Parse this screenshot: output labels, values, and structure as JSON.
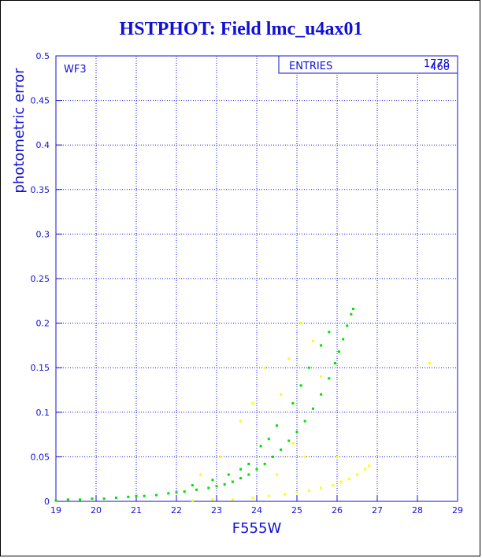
{
  "chart_data": {
    "type": "scatter",
    "title": "HSTPHOT: Field lmc_u4ax01",
    "xlabel": "F555W",
    "ylabel": "photometric error",
    "panel_label": "WF3",
    "stats_label": "ENTRIES",
    "stats_values": [
      "1778",
      "460"
    ],
    "xlim": [
      19,
      29
    ],
    "ylim": [
      0,
      0.5
    ],
    "xticks": [
      19,
      20,
      21,
      22,
      23,
      24,
      25,
      26,
      27,
      28,
      29
    ],
    "yticks": [
      0,
      0.05,
      0.1,
      0.15,
      0.2,
      0.25,
      0.3,
      0.35,
      0.4,
      0.45,
      0.5
    ],
    "ytick_labels": [
      "0",
      "0.05",
      "0.1",
      "0.15",
      "0.2",
      "0.25",
      "0.3",
      "0.35",
      "0.4",
      "0.45",
      "0.5"
    ],
    "grid": true,
    "series": [
      {
        "color": "#00e000",
        "points": [
          [
            19.0,
            0.001
          ],
          [
            19.3,
            0.002
          ],
          [
            19.6,
            0.002
          ],
          [
            19.9,
            0.003
          ],
          [
            20.2,
            0.003
          ],
          [
            20.5,
            0.004
          ],
          [
            20.8,
            0.005
          ],
          [
            21.0,
            0.006
          ],
          [
            21.2,
            0.006
          ],
          [
            21.5,
            0.007
          ],
          [
            21.8,
            0.009
          ],
          [
            22.0,
            0.01
          ],
          [
            22.2,
            0.011
          ],
          [
            22.5,
            0.013
          ],
          [
            22.8,
            0.015
          ],
          [
            23.0,
            0.017
          ],
          [
            23.2,
            0.019
          ],
          [
            23.4,
            0.022
          ],
          [
            23.6,
            0.026
          ],
          [
            23.8,
            0.03
          ],
          [
            24.0,
            0.036
          ],
          [
            24.2,
            0.042
          ],
          [
            24.4,
            0.05
          ],
          [
            24.6,
            0.058
          ],
          [
            24.8,
            0.068
          ],
          [
            25.0,
            0.078
          ],
          [
            25.2,
            0.09
          ],
          [
            25.4,
            0.104
          ],
          [
            25.6,
            0.12
          ],
          [
            25.8,
            0.138
          ],
          [
            25.95,
            0.155
          ],
          [
            26.05,
            0.168
          ],
          [
            26.15,
            0.182
          ],
          [
            26.25,
            0.197
          ],
          [
            26.35,
            0.21
          ],
          [
            26.4,
            0.216
          ],
          [
            22.4,
            0.018
          ],
          [
            23.3,
            0.03
          ],
          [
            23.8,
            0.042
          ],
          [
            24.1,
            0.062
          ],
          [
            24.5,
            0.085
          ],
          [
            24.9,
            0.11
          ],
          [
            25.1,
            0.13
          ],
          [
            25.3,
            0.15
          ],
          [
            25.6,
            0.175
          ],
          [
            25.8,
            0.19
          ],
          [
            22.9,
            0.024
          ],
          [
            23.6,
            0.036
          ],
          [
            24.3,
            0.07
          ]
        ]
      },
      {
        "color": "#ffff00",
        "points": [
          [
            22.4,
            0.001
          ],
          [
            22.9,
            0.002
          ],
          [
            23.4,
            0.002
          ],
          [
            23.9,
            0.004
          ],
          [
            24.3,
            0.006
          ],
          [
            24.7,
            0.008
          ],
          [
            25.0,
            0.01
          ],
          [
            25.3,
            0.012
          ],
          [
            25.6,
            0.015
          ],
          [
            25.9,
            0.018
          ],
          [
            26.1,
            0.022
          ],
          [
            26.3,
            0.025
          ],
          [
            26.5,
            0.03
          ],
          [
            26.7,
            0.036
          ],
          [
            26.8,
            0.04
          ],
          [
            24.6,
            0.12
          ],
          [
            24.8,
            0.16
          ],
          [
            25.1,
            0.2
          ],
          [
            25.4,
            0.18
          ],
          [
            23.6,
            0.09
          ],
          [
            23.9,
            0.11
          ],
          [
            24.2,
            0.15
          ],
          [
            25.6,
            0.14
          ],
          [
            26.0,
            0.05
          ],
          [
            28.3,
            0.155
          ],
          [
            24.5,
            0.03
          ],
          [
            23.1,
            0.05
          ],
          [
            22.6,
            0.03
          ],
          [
            24.9,
            0.065
          ],
          [
            25.2,
            0.05
          ]
        ]
      }
    ]
  }
}
